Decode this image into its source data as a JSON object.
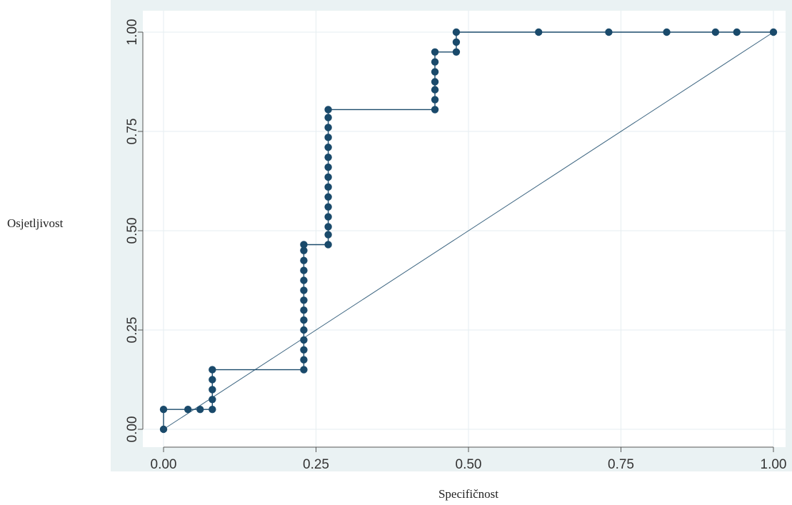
{
  "chart_data": {
    "type": "line",
    "title": "",
    "xlabel": "Specifičnost",
    "ylabel": "Osjetljivost",
    "xlim": [
      0,
      1
    ],
    "ylim": [
      0,
      1
    ],
    "grid": true,
    "x_ticks": [
      "0.00",
      "0.25",
      "0.50",
      "0.75",
      "1.00"
    ],
    "y_ticks": [
      "0.00",
      "0.25",
      "0.50",
      "0.75",
      "1.00"
    ],
    "series": [
      {
        "style": "step-line-with-markers",
        "points": [
          [
            0.0,
            0.0
          ],
          [
            0.0,
            0.05
          ],
          [
            0.04,
            0.05
          ],
          [
            0.06,
            0.05
          ],
          [
            0.08,
            0.05
          ],
          [
            0.08,
            0.075
          ],
          [
            0.08,
            0.1
          ],
          [
            0.08,
            0.125
          ],
          [
            0.08,
            0.15
          ],
          [
            0.23,
            0.15
          ],
          [
            0.23,
            0.175
          ],
          [
            0.23,
            0.2
          ],
          [
            0.23,
            0.225
          ],
          [
            0.23,
            0.25
          ],
          [
            0.23,
            0.275
          ],
          [
            0.23,
            0.3
          ],
          [
            0.23,
            0.325
          ],
          [
            0.23,
            0.35
          ],
          [
            0.23,
            0.375
          ],
          [
            0.23,
            0.4
          ],
          [
            0.23,
            0.425
          ],
          [
            0.23,
            0.45
          ],
          [
            0.23,
            0.465
          ],
          [
            0.27,
            0.465
          ],
          [
            0.27,
            0.49
          ],
          [
            0.27,
            0.51
          ],
          [
            0.27,
            0.535
          ],
          [
            0.27,
            0.56
          ],
          [
            0.27,
            0.585
          ],
          [
            0.27,
            0.61
          ],
          [
            0.27,
            0.635
          ],
          [
            0.27,
            0.66
          ],
          [
            0.27,
            0.685
          ],
          [
            0.27,
            0.71
          ],
          [
            0.27,
            0.735
          ],
          [
            0.27,
            0.76
          ],
          [
            0.27,
            0.785
          ],
          [
            0.27,
            0.805
          ],
          [
            0.445,
            0.805
          ],
          [
            0.445,
            0.83
          ],
          [
            0.445,
            0.855
          ],
          [
            0.445,
            0.875
          ],
          [
            0.445,
            0.9
          ],
          [
            0.445,
            0.925
          ],
          [
            0.445,
            0.95
          ],
          [
            0.48,
            0.95
          ],
          [
            0.48,
            0.975
          ],
          [
            0.48,
            1.0
          ],
          [
            0.615,
            1.0
          ],
          [
            0.73,
            1.0
          ],
          [
            0.825,
            1.0
          ],
          [
            0.905,
            1.0
          ],
          [
            0.94,
            1.0
          ],
          [
            1.0,
            1.0
          ]
        ]
      },
      {
        "style": "reference-line",
        "points": [
          [
            0,
            0
          ],
          [
            1,
            1
          ]
        ]
      }
    ],
    "colors": {
      "plot_background": "#ffffff",
      "outer_background": "#eaf2f3",
      "grid": "#e6eef0",
      "curve": "#1a4a6b",
      "marker": "#1a4a6b",
      "reference": "#1a4a6b"
    }
  }
}
